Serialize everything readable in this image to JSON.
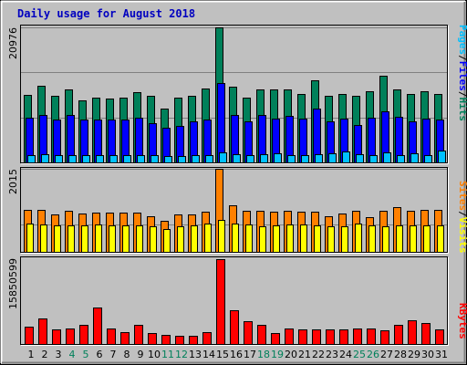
{
  "chart_data": {
    "type": "bar",
    "title": "Daily usage for August 2018",
    "categories": [
      "1",
      "2",
      "3",
      "4",
      "5",
      "6",
      "7",
      "8",
      "9",
      "10",
      "11",
      "12",
      "13",
      "14",
      "15",
      "16",
      "17",
      "18",
      "19",
      "20",
      "21",
      "22",
      "23",
      "24",
      "25",
      "26",
      "27",
      "28",
      "29",
      "30",
      "31"
    ],
    "weekend_days": [
      "4",
      "5",
      "11",
      "12",
      "18",
      "19",
      "25",
      "26"
    ],
    "colors": {
      "background": "#C0C0C0",
      "title": "#0000C0",
      "weekday_label": "#000000",
      "weekend_label": "#00805A",
      "hits": "#00805A",
      "files": "#0000FF",
      "pages": "#00C0FF",
      "visits": "#FFFF00",
      "sites": "#FF8000",
      "kbytes": "#FF0000"
    },
    "panels": [
      {
        "id": "hits-files-pages",
        "max_label": "20976",
        "ylim": [
          0,
          20976
        ],
        "legend": [
          {
            "label": "Hits",
            "color": "#00805A"
          },
          {
            "label": "/",
            "color": "#000000"
          },
          {
            "label": "Files",
            "color": "#0000FF"
          },
          {
            "label": "/",
            "color": "#000000"
          },
          {
            "label": "Pages",
            "color": "#00C0FF"
          }
        ],
        "series": [
          {
            "name": "Hits",
            "color": "#00805A",
            "values": [
              10500,
              11900,
              10400,
              11300,
              9700,
              10100,
              9900,
              10100,
              10900,
              10400,
              8400,
              10000,
              10300,
              11500,
              20976,
              11700,
              10100,
              11400,
              11300,
              11400,
              10600,
              12700,
              10300,
              10600,
              10400,
              11100,
              13400,
              11300,
              10600,
              11100,
              10600
            ]
          },
          {
            "name": "Files",
            "color": "#0000FF",
            "values": [
              7000,
              7300,
              6600,
              7400,
              6600,
              6700,
              6600,
              6700,
              6900,
              6100,
              5400,
              5700,
              6400,
              6700,
              12400,
              7300,
              6400,
              7300,
              6800,
              7200,
              6800,
              8300,
              6400,
              6800,
              5800,
              6900,
              8000,
              7100,
              6400,
              6800,
              6700
            ]
          },
          {
            "name": "Pages",
            "color": "#00C0FF",
            "values": [
              1100,
              1300,
              1200,
              1200,
              1100,
              1100,
              1200,
              1100,
              1200,
              1100,
              1000,
              1000,
              1100,
              1200,
              1500,
              1300,
              1200,
              1300,
              1400,
              1200,
              1100,
              1300,
              1400,
              1700,
              1300,
              1200,
              1500,
              1100,
              1400,
              1200,
              1800
            ]
          }
        ]
      },
      {
        "id": "sites-visits",
        "max_label": "2015",
        "ylim": [
          0,
          2015
        ],
        "legend": [
          {
            "label": "Visits",
            "color": "#FFFF00"
          },
          {
            "label": "/",
            "color": "#000000"
          },
          {
            "label": "Sites",
            "color": "#FF8000"
          }
        ],
        "series": [
          {
            "name": "Sites",
            "color": "#FF8000",
            "values": [
              1020,
              1020,
              900,
              1000,
              920,
              960,
              950,
              960,
              950,
              870,
              760,
              900,
              900,
              970,
              2015,
              1130,
              990,
              1000,
              980,
              990,
              980,
              970,
              860,
              940,
              1000,
              840,
              990,
              1080,
              1000,
              1020,
              1020
            ]
          },
          {
            "name": "Visits",
            "color": "#FFFF00",
            "values": [
              690,
              670,
              650,
              650,
              640,
              670,
              650,
              640,
              640,
              630,
              560,
              630,
              640,
              680,
              780,
              680,
              660,
              620,
              650,
              670,
              660,
              640,
              620,
              620,
              690,
              650,
              620,
              640,
              650,
              640,
              650
            ]
          }
        ]
      },
      {
        "id": "kbytes",
        "max_label": "15850599",
        "ylim": [
          0,
          15850599
        ],
        "legend": [
          {
            "label": "KBytes",
            "color": "#FF0000"
          }
        ],
        "series": [
          {
            "name": "KBytes",
            "color": "#FF0000",
            "values": [
              3300000,
              4700000,
              2650000,
              2900000,
              3500000,
              6800000,
              2900000,
              2300000,
              3500000,
              2050000,
              1650000,
              1500000,
              1500000,
              2150000,
              15850599,
              6300000,
              4300000,
              3600000,
              2100000,
              2900000,
              2700000,
              2800000,
              2700000,
              2700000,
              2900000,
              2950000,
              2600000,
              3500000,
              4500000,
              3900000,
              2800000
            ]
          }
        ]
      }
    ]
  }
}
